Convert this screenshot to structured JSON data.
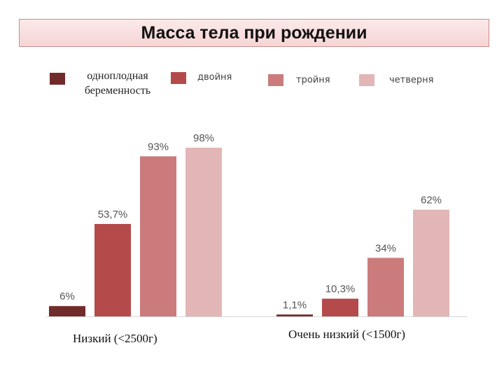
{
  "title": "Масса тела при рождении",
  "legend": [
    {
      "label": "одноплодная беременность",
      "color": "#722b2b"
    },
    {
      "label": "двойня",
      "color": "#b54a4a"
    },
    {
      "label": "тройня",
      "color": "#cb7b7b"
    },
    {
      "label": "четверня",
      "color": "#e2b6b6"
    }
  ],
  "chart_data": {
    "type": "bar",
    "categories": [
      "Низкий (<2500г)",
      "Очень низкий (<1500г)"
    ],
    "series": [
      {
        "name": "одноплодная беременность",
        "values": [
          6,
          1.1
        ],
        "labels": [
          "6%",
          "1,1%"
        ],
        "color": "#722b2b"
      },
      {
        "name": "двойня",
        "values": [
          53.7,
          10.3
        ],
        "labels": [
          "53,7%",
          "10,3%"
        ],
        "color": "#b54a4a"
      },
      {
        "name": "тройня",
        "values": [
          93,
          34
        ],
        "labels": [
          "93%",
          "34%"
        ],
        "color": "#cb7b7b"
      },
      {
        "name": "четверня",
        "values": [
          98,
          62
        ],
        "labels": [
          "98%",
          "62%"
        ],
        "color": "#e2b6b6"
      }
    ],
    "ylim": [
      0,
      100
    ],
    "grid": false,
    "legend_position": "top"
  }
}
